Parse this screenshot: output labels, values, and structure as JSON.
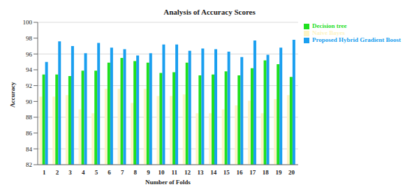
{
  "chart_data": {
    "type": "bar",
    "title": "Analysis of Accuracy Scores",
    "x_label": "Number of Folds",
    "y_label": "Accuracy",
    "categories": [
      "1",
      "2",
      "3",
      "4",
      "5",
      "6",
      "7",
      "8",
      "9",
      "10",
      "11",
      "12",
      "13",
      "14",
      "15",
      "16",
      "17",
      "18",
      "19",
      "20"
    ],
    "series": [
      {
        "name": "Naive Bayes",
        "color": "#fdf3c4",
        "values": [
          90.6,
          90.6,
          90.8,
          89.0,
          88.5,
          91.6,
          91.6,
          89.8,
          91.6,
          90.7,
          90.7,
          90.9,
          88.5,
          88.5,
          89.0,
          89.5,
          90.1,
          88.5,
          90.3,
          90.8
        ]
      },
      {
        "name": "Decision tree",
        "color": "#1fe01f",
        "values": [
          93.4,
          93.4,
          93.2,
          93.9,
          93.9,
          94.9,
          95.5,
          95.1,
          94.9,
          93.6,
          93.7,
          94.9,
          93.3,
          93.4,
          93.8,
          93.3,
          94.2,
          95.2,
          94.7,
          93.1
        ]
      },
      {
        "name": "Proposed Hybrid Gradient Boost",
        "color": "#1a9ff0",
        "values": [
          95.0,
          97.6,
          97.0,
          96.1,
          97.4,
          96.8,
          96.6,
          95.8,
          96.1,
          97.2,
          97.2,
          96.4,
          96.7,
          96.6,
          96.3,
          95.6,
          97.7,
          95.9,
          96.8,
          97.8
        ]
      }
    ],
    "ylim": [
      82,
      100
    ],
    "yticks": [
      82,
      84,
      86,
      88,
      90,
      92,
      94,
      96,
      98,
      100
    ],
    "grid": true,
    "legend": "upper right"
  }
}
